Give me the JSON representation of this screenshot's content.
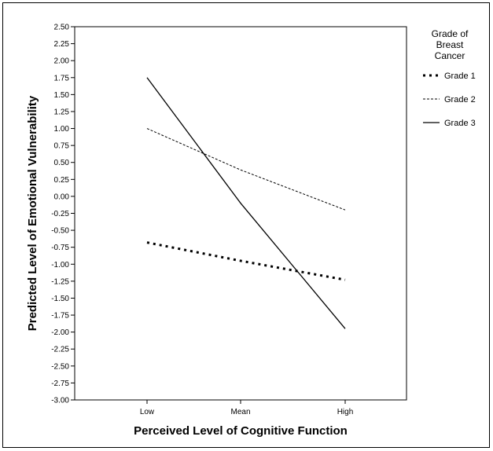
{
  "chart_data": {
    "type": "line",
    "categories": [
      "Low",
      "Mean",
      "High"
    ],
    "xlabel": "Perceived Level of Cognitive Function",
    "ylabel": "Predicted Level of Emotional Vulnerability",
    "ylim": [
      -3.0,
      2.5
    ],
    "yticks": [
      "2.50",
      "2.25",
      "2.00",
      "1.75",
      "1.50",
      "1.25",
      "1.00",
      "0.75",
      "0.50",
      "0.25",
      "0.00",
      "-0.25",
      "-0.50",
      "-0.75",
      "-1.00",
      "-1.25",
      "-1.50",
      "-1.75",
      "-2.00",
      "-2.25",
      "-2.50",
      "-2.75",
      "-3.00"
    ],
    "legend": {
      "title_lines": [
        "Grade of",
        "Breast",
        "Cancer"
      ],
      "placement": "right"
    },
    "grid": false,
    "series": [
      {
        "name": "Grade 1",
        "style": "dotted-bold",
        "color": "#000000",
        "values": [
          -0.68,
          -0.95,
          -1.23
        ]
      },
      {
        "name": "Grade 2",
        "style": "dashed",
        "color": "#000000",
        "values": [
          1.0,
          0.39,
          -0.2
        ]
      },
      {
        "name": "Grade 3",
        "style": "solid",
        "color": "#000000",
        "values": [
          1.75,
          -0.1,
          -1.95
        ]
      }
    ]
  }
}
